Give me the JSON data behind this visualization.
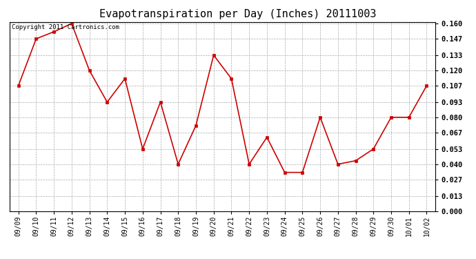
{
  "title": "Evapotranspiration per Day (Inches) 20111003",
  "copyright": "Copyright 2011 Cartronics.com",
  "x_labels": [
    "09/09",
    "09/10",
    "09/11",
    "09/12",
    "09/13",
    "09/14",
    "09/15",
    "09/16",
    "09/17",
    "09/18",
    "09/19",
    "09/20",
    "09/21",
    "09/22",
    "09/23",
    "09/24",
    "09/25",
    "09/26",
    "09/27",
    "09/28",
    "09/29",
    "09/30",
    "10/01",
    "10/02"
  ],
  "y_values": [
    0.107,
    0.147,
    0.153,
    0.16,
    0.12,
    0.093,
    0.113,
    0.053,
    0.093,
    0.04,
    0.073,
    0.133,
    0.113,
    0.04,
    0.063,
    0.033,
    0.033,
    0.08,
    0.04,
    0.043,
    0.053,
    0.08,
    0.08,
    0.107
  ],
  "line_color": "#cc0000",
  "marker_color": "#cc0000",
  "background_color": "#ffffff",
  "grid_color": "#aaaaaa",
  "ylim": [
    0.0,
    0.1613
  ],
  "yticks": [
    0.0,
    0.013,
    0.027,
    0.04,
    0.053,
    0.067,
    0.08,
    0.093,
    0.107,
    0.12,
    0.133,
    0.147,
    0.16
  ],
  "title_fontsize": 11,
  "copyright_fontsize": 6.5,
  "tick_fontsize": 7,
  "ytick_fontsize": 7.5
}
